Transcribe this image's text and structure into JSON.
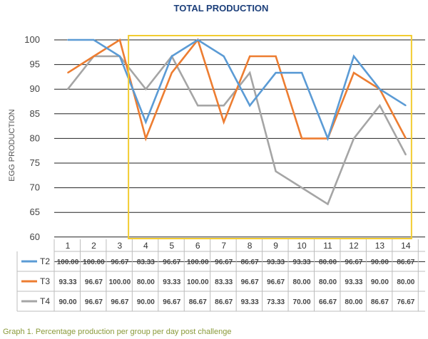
{
  "chart_data": {
    "type": "line",
    "title": "TOTAL PRODUCTION",
    "ylabel": "EGG PRODUCTION",
    "xlabel": "",
    "ylim": [
      55,
      100
    ],
    "yticks": [
      "60",
      "65",
      "70",
      "75",
      "80",
      "85",
      "90",
      "95",
      "100"
    ],
    "categories": [
      "1",
      "2",
      "3",
      "4",
      "5",
      "6",
      "7",
      "8",
      "9",
      "10",
      "11",
      "12",
      "13",
      "14"
    ],
    "grid": true,
    "legend": "data-table-left",
    "highlight_box": {
      "from_category": "4",
      "to_category": "14",
      "color": "#f2cc30"
    },
    "series": [
      {
        "name": "T2",
        "color": "#5b9bd5",
        "values": [
          100.0,
          100.0,
          96.67,
          83.33,
          96.67,
          100.0,
          96.67,
          86.67,
          93.33,
          93.33,
          80.0,
          96.67,
          90.0,
          86.67
        ],
        "labels": [
          "100.00",
          "100.00",
          "96.67",
          "83.33",
          "96.67",
          "100.00",
          "96.67",
          "86.67",
          "93.33",
          "93.33",
          "80.00",
          "96.67",
          "90.00",
          "86.67"
        ]
      },
      {
        "name": "T3",
        "color": "#ed7d31",
        "values": [
          93.33,
          96.67,
          100.0,
          80.0,
          93.33,
          100.0,
          83.33,
          96.67,
          96.67,
          80.0,
          80.0,
          93.33,
          90.0,
          80.0
        ],
        "labels": [
          "93.33",
          "96.67",
          "100.00",
          "80.00",
          "93.33",
          "100.00",
          "83.33",
          "96.67",
          "96.67",
          "80.00",
          "80.00",
          "93.33",
          "90.00",
          "80.00"
        ]
      },
      {
        "name": "T4",
        "color": "#a5a5a5",
        "values": [
          90.0,
          96.67,
          96.67,
          90.0,
          96.67,
          86.67,
          86.67,
          93.33,
          73.33,
          70.0,
          66.67,
          80.0,
          86.67,
          76.67
        ],
        "labels": [
          "90.00",
          "96.67",
          "96.67",
          "90.00",
          "96.67",
          "86.67",
          "86.67",
          "93.33",
          "73.33",
          "70.00",
          "66.67",
          "80.00",
          "86.67",
          "76.67"
        ]
      }
    ],
    "caption": "Graph 1. Percentage production per group per day post challenge"
  }
}
